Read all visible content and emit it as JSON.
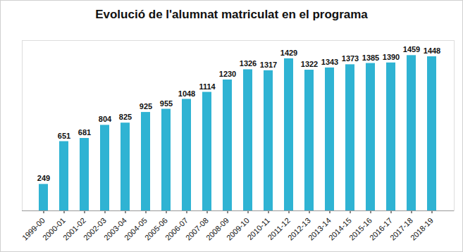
{
  "chart_data": {
    "type": "bar",
    "title": "Evolució de l'alumnat matriculat  en el programa",
    "categories": [
      "1999-00",
      "2000-01",
      "2001-02",
      "2002-03",
      "2003-04",
      "2004-05",
      "2005-06",
      "2006-07",
      "2007-08",
      "2008-09",
      "2009-10",
      "2010-11",
      "2011-12",
      "2012-13",
      "2013-14",
      "2014-15",
      "2015-16",
      "2016-17",
      "2017-18",
      "2018-19"
    ],
    "values": [
      249,
      651,
      681,
      804,
      825,
      925,
      955,
      1048,
      1114,
      1230,
      1326,
      1317,
      1429,
      1322,
      1343,
      1373,
      1385,
      1390,
      1459,
      1448
    ],
    "color": "#2fb3d3",
    "ylim": [
      0,
      1600
    ],
    "grid": false,
    "data_labels": true,
    "tick_labels": "x"
  }
}
